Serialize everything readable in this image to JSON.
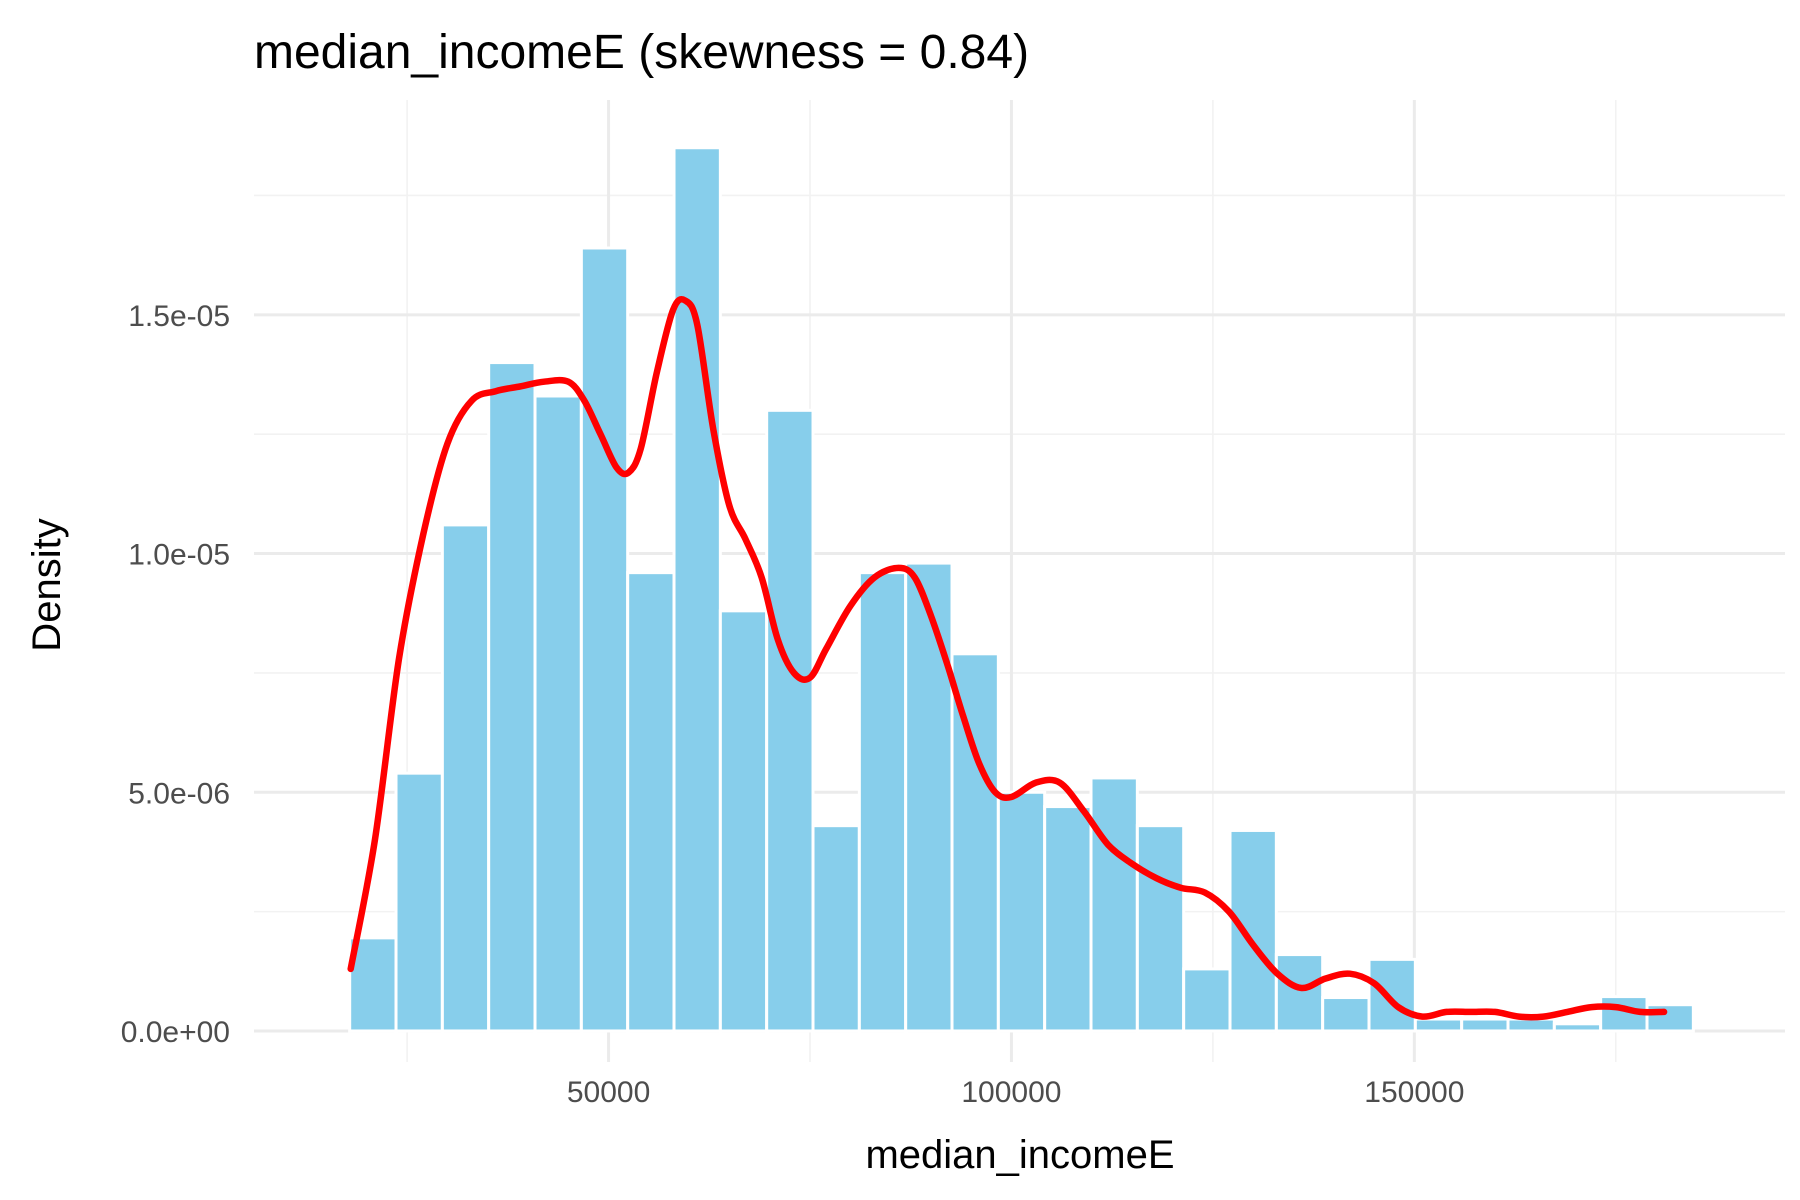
{
  "chart_data": {
    "type": "bar",
    "title": "median_incomeE (skewness = 0.84)",
    "xlabel": "median_incomeE",
    "ylabel": "Density",
    "xlim": [
      6000,
      196000
    ],
    "ylim": [
      -6.5e-07,
      1.95e-05
    ],
    "x_ticks": [
      {
        "value": 50000,
        "label": "50000"
      },
      {
        "value": 100000,
        "label": "100000"
      },
      {
        "value": 150000,
        "label": "150000"
      }
    ],
    "x_minor_ticks": [
      25000,
      75000,
      125000,
      175000
    ],
    "y_ticks": [
      {
        "value": 0,
        "label": "0.0e+00"
      },
      {
        "value": 5e-06,
        "label": "5.0e-06"
      },
      {
        "value": 1e-05,
        "label": "1.0e-05"
      },
      {
        "value": 1.5e-05,
        "label": "1.5e-05"
      }
    ],
    "y_minor_ticks": [
      2.5e-06,
      7.5e-06,
      1.25e-05,
      1.75e-05
    ],
    "grid": true,
    "bin_width": 5750,
    "bins": {
      "x_centers": [
        20750,
        26500,
        32250,
        38000,
        43750,
        49500,
        55250,
        61000,
        66750,
        72500,
        78250,
        84000,
        89750,
        95500,
        101250,
        107000,
        112750,
        118500,
        124250,
        130000,
        135750,
        141500,
        147250,
        153000,
        158750,
        164500,
        170250,
        176000,
        181750
      ],
      "density": [
        1.95e-06,
        5.4e-06,
        1.06e-05,
        1.4e-05,
        1.33e-05,
        1.64e-05,
        9.6e-06,
        1.85e-05,
        8.8e-06,
        1.3e-05,
        4.3e-06,
        9.6e-06,
        9.8e-06,
        7.9e-06,
        5e-06,
        4.7e-06,
        5.3e-06,
        4.3e-06,
        1.3e-06,
        4.2e-06,
        1.6e-06,
        7e-07,
        1.5e-06,
        2.5e-07,
        2.5e-07,
        2.5e-07,
        1.5e-07,
        7.2e-07,
        5.5e-07
      ]
    },
    "density_curve": {
      "x": [
        18000,
        21000,
        24000,
        27000,
        30000,
        33000,
        36000,
        39000,
        42000,
        45000,
        47000,
        49000,
        51000,
        52500,
        54000,
        56000,
        58000,
        59500,
        61000,
        63000,
        65000,
        67000,
        69000,
        71000,
        73000,
        75000,
        77000,
        80000,
        83000,
        86000,
        88000,
        90000,
        92000,
        94000,
        96000,
        98000,
        100000,
        103000,
        106000,
        109000,
        112000,
        115000,
        118000,
        121000,
        124000,
        127000,
        130000,
        133000,
        136000,
        139000,
        142000,
        145000,
        148000,
        151000,
        154000,
        157000,
        160000,
        163000,
        166000,
        169000,
        172000,
        175000,
        178000,
        181000
      ],
      "y": [
        1.3e-06,
        4e-06,
        7.8e-06,
        1.04e-05,
        1.23e-05,
        1.32e-05,
        1.34e-05,
        1.35e-05,
        1.36e-05,
        1.36e-05,
        1.32e-05,
        1.25e-05,
        1.18e-05,
        1.17e-05,
        1.22e-05,
        1.38e-05,
        1.51e-05,
        1.53e-05,
        1.48e-05,
        1.26e-05,
        1.1e-05,
        1.03e-05,
        9.5e-06,
        8.2e-06,
        7.5e-06,
        7.4e-06,
        8e-06,
        8.9e-06,
        9.5e-06,
        9.7e-06,
        9.5e-06,
        8.7e-06,
        7.7e-06,
        6.6e-06,
        5.6e-06,
        5e-06,
        4.9e-06,
        5.2e-06,
        5.2e-06,
        4.6e-06,
        3.9e-06,
        3.5e-06,
        3.2e-06,
        3e-06,
        2.9e-06,
        2.5e-06,
        1.8e-06,
        1.2e-06,
        9e-07,
        1.1e-06,
        1.2e-06,
        1e-06,
        5e-07,
        3e-07,
        4e-07,
        4e-07,
        4e-07,
        3e-07,
        3e-07,
        4e-07,
        5e-07,
        5e-07,
        4e-07,
        4e-07
      ]
    },
    "colors": {
      "bar_fill": "#87CEEB",
      "bar_outline": "#ffffff",
      "density_line": "#ff0000",
      "grid": "#ebebeb",
      "background": "#ffffff"
    }
  }
}
